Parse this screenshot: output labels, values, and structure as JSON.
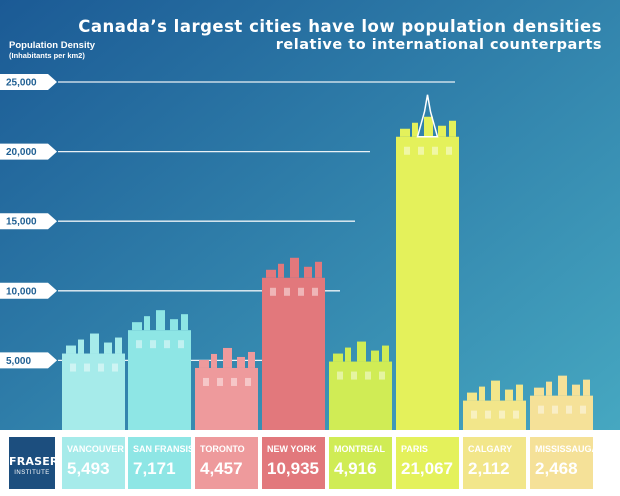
{
  "title": {
    "line1": "Canada’s largest cities have low population densities",
    "line2": "relative to international counterparts"
  },
  "ylabel": {
    "main": "Population Density",
    "sub": "(Inhabitants per km2)"
  },
  "logo": {
    "name": "FRASER",
    "sub": "INSTITUTE"
  },
  "colors": {
    "bg_top": "#1c5f98",
    "bg_bottom": "#46a8c2",
    "Vancouver": "#a6ebea",
    "San Fransisco": "#8ee6e5",
    "Toronto": "#ee9a9c",
    "New York": "#e2787c",
    "Montreal": "#d0ec55",
    "Paris": "#e4f15b",
    "Calgary": "#f2e68a",
    "Mississauga": "#f5e198"
  },
  "chart_data": {
    "type": "bar",
    "title": "Canada’s largest cities have low population densities relative to international counterparts",
    "ylabel": "Population Density (Inhabitants per km2)",
    "xlabel": "",
    "ylim": [
      0,
      25000
    ],
    "yticks": [
      "5,000",
      "10,000",
      "15,000",
      "20,000",
      "25,000"
    ],
    "categories": [
      "Vancouver",
      "San Fransisco",
      "Toronto",
      "New York",
      "Montreal",
      "Paris",
      "Calgary",
      "Mississauga"
    ],
    "values": [
      5493,
      7171,
      4457,
      10935,
      4916,
      21067,
      2112,
      2468
    ],
    "value_labels": [
      "5,493",
      "7,171",
      "4,457",
      "10,935",
      "4,916",
      "21,067",
      "2,112",
      "2,468"
    ],
    "grid": true
  }
}
